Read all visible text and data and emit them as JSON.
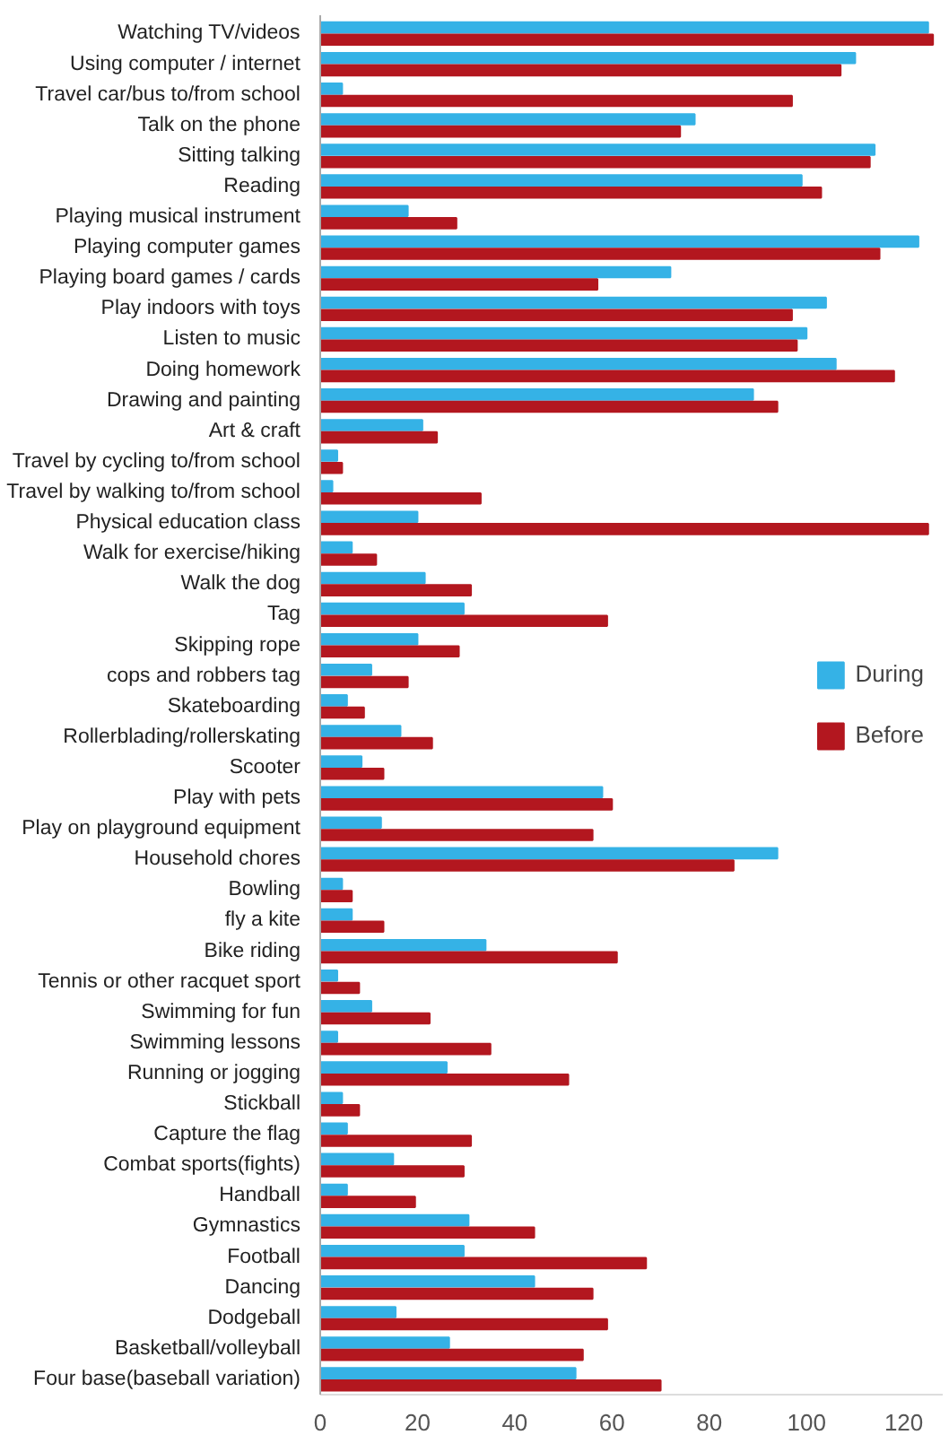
{
  "chart_data": {
    "type": "bar",
    "orientation": "horizontal",
    "categories": [
      "Watching TV/videos",
      "Using computer / internet",
      "Travel car/bus to/from school",
      "Talk on the phone",
      "Sitting talking",
      "Reading",
      "Playing musical instrument",
      "Playing computer games",
      "Playing board games / cards",
      "Play indoors with toys",
      "Listen to music",
      "Doing homework",
      "Drawing and painting",
      "Art & craft",
      "Travel by cycling to/from school",
      "Travel by walking to/from school",
      "Physical education class",
      "Walk for exercise/hiking",
      "Walk the dog",
      "Tag",
      "Skipping rope",
      "cops and robbers tag",
      "Skateboarding",
      "Rollerblading/rollerskating",
      "Scooter",
      "Play with pets",
      "Play on playground equipment",
      "Household chores",
      "Bowling",
      "fly a kite",
      "Bike riding",
      "Tennis or other racquet sport",
      "Swimming for fun",
      "Swimming lessons",
      "Running or jogging",
      "Stickball",
      "Capture the flag",
      "Combat sports(fights)",
      "Handball",
      "Gymnastics",
      "Football",
      "Dancing",
      "Dodgeball",
      "Basketball/volleyball",
      "Four base(baseball variation)"
    ],
    "series": [
      {
        "name": "During",
        "color": "#35b2e6",
        "values": [
          125,
          110,
          4.5,
          77,
          114,
          99,
          18,
          123,
          72,
          104,
          100,
          106,
          89,
          21,
          3.5,
          2.5,
          20,
          6.5,
          21.5,
          29.5,
          20,
          10.5,
          5.5,
          16.5,
          8.5,
          58,
          12.5,
          94,
          4.5,
          6.5,
          34,
          3.5,
          10.5,
          3.5,
          26,
          4.5,
          5.5,
          15,
          5.5,
          30.5,
          29.5,
          44,
          15.5,
          26.5,
          52.5
        ]
      },
      {
        "name": "Before",
        "color": "#b3171f",
        "values": [
          126,
          107,
          97,
          74,
          113,
          103,
          28,
          115,
          57,
          97,
          98,
          118,
          94,
          24,
          4.5,
          33,
          125,
          11.5,
          31,
          59,
          28.5,
          18,
          9,
          23,
          13,
          60,
          56,
          85,
          6.5,
          13,
          61,
          8,
          22.5,
          35,
          51,
          8,
          31,
          29.5,
          19.5,
          44,
          67,
          56,
          59,
          54,
          70
        ]
      }
    ],
    "xlim": [
      0,
      128
    ],
    "xticks": [
      0,
      20,
      40,
      60,
      80,
      100,
      120
    ],
    "legend": "right"
  }
}
